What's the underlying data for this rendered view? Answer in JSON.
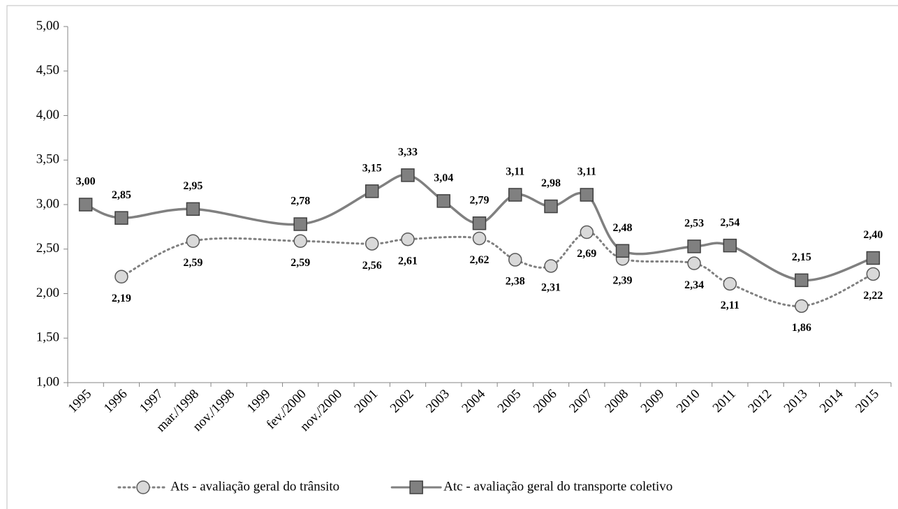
{
  "chart_data": {
    "type": "line",
    "categories": [
      "1995",
      "1996",
      "1997",
      "mar./1998",
      "nov./1998",
      "1999",
      "fev./2000",
      "nov./2000",
      "2001",
      "2002",
      "2003",
      "2004",
      "2005",
      "2006",
      "2007",
      "2008",
      "2009",
      "2010",
      "2011",
      "2012",
      "2013",
      "2014",
      "2015"
    ],
    "series": [
      {
        "name": "Ats - avaliação geral do trânsito",
        "color": "#808080",
        "marker_color": "#d9d9d9",
        "marker": "circle",
        "dash": "dotted",
        "label_position": "below",
        "values": [
          null,
          2.19,
          null,
          2.59,
          null,
          null,
          2.59,
          null,
          2.56,
          2.61,
          null,
          2.62,
          2.38,
          2.31,
          2.69,
          2.39,
          null,
          2.34,
          2.11,
          null,
          1.86,
          null,
          2.22
        ],
        "value_labels": [
          null,
          "2,19",
          null,
          "2,59",
          null,
          null,
          "2,59",
          null,
          "2,56",
          "2,61",
          null,
          "2,62",
          "2,38",
          "2,31",
          "2,69",
          "2,39",
          null,
          "2,34",
          "2,11",
          null,
          "1,86",
          null,
          "2,22"
        ]
      },
      {
        "name": "Atc - avaliação geral do transporte coletivo",
        "color": "#808080",
        "marker_color": "#808080",
        "marker": "square",
        "dash": "solid",
        "label_position": "above",
        "values": [
          3.0,
          2.85,
          null,
          2.95,
          null,
          null,
          2.78,
          null,
          3.15,
          3.33,
          3.04,
          2.79,
          3.11,
          2.98,
          3.11,
          2.48,
          null,
          2.53,
          2.54,
          null,
          2.15,
          null,
          2.4
        ],
        "value_labels": [
          "3,00",
          "2,85",
          null,
          "2,95",
          null,
          null,
          "2,78",
          null,
          "3,15",
          "3,33",
          "3,04",
          "2,79",
          "3,11",
          "2,98",
          "3,11",
          "2,48",
          null,
          "2,53",
          "2,54",
          null,
          "2,15",
          null,
          "2,40"
        ]
      }
    ],
    "ylim": [
      1,
      5
    ],
    "yticks": [
      {
        "value": 1,
        "label": "1,00"
      },
      {
        "value": 1.5,
        "label": "1,50"
      },
      {
        "value": 2,
        "label": "2,00"
      },
      {
        "value": 2.5,
        "label": "2,50"
      },
      {
        "value": 3,
        "label": "3,00"
      },
      {
        "value": 3.5,
        "label": "3,50"
      },
      {
        "value": 4,
        "label": "4,00"
      },
      {
        "value": 4.5,
        "label": "4,50"
      },
      {
        "value": 5,
        "label": "5,00"
      }
    ],
    "grid": false,
    "smooth": true,
    "legend": "bottom"
  }
}
